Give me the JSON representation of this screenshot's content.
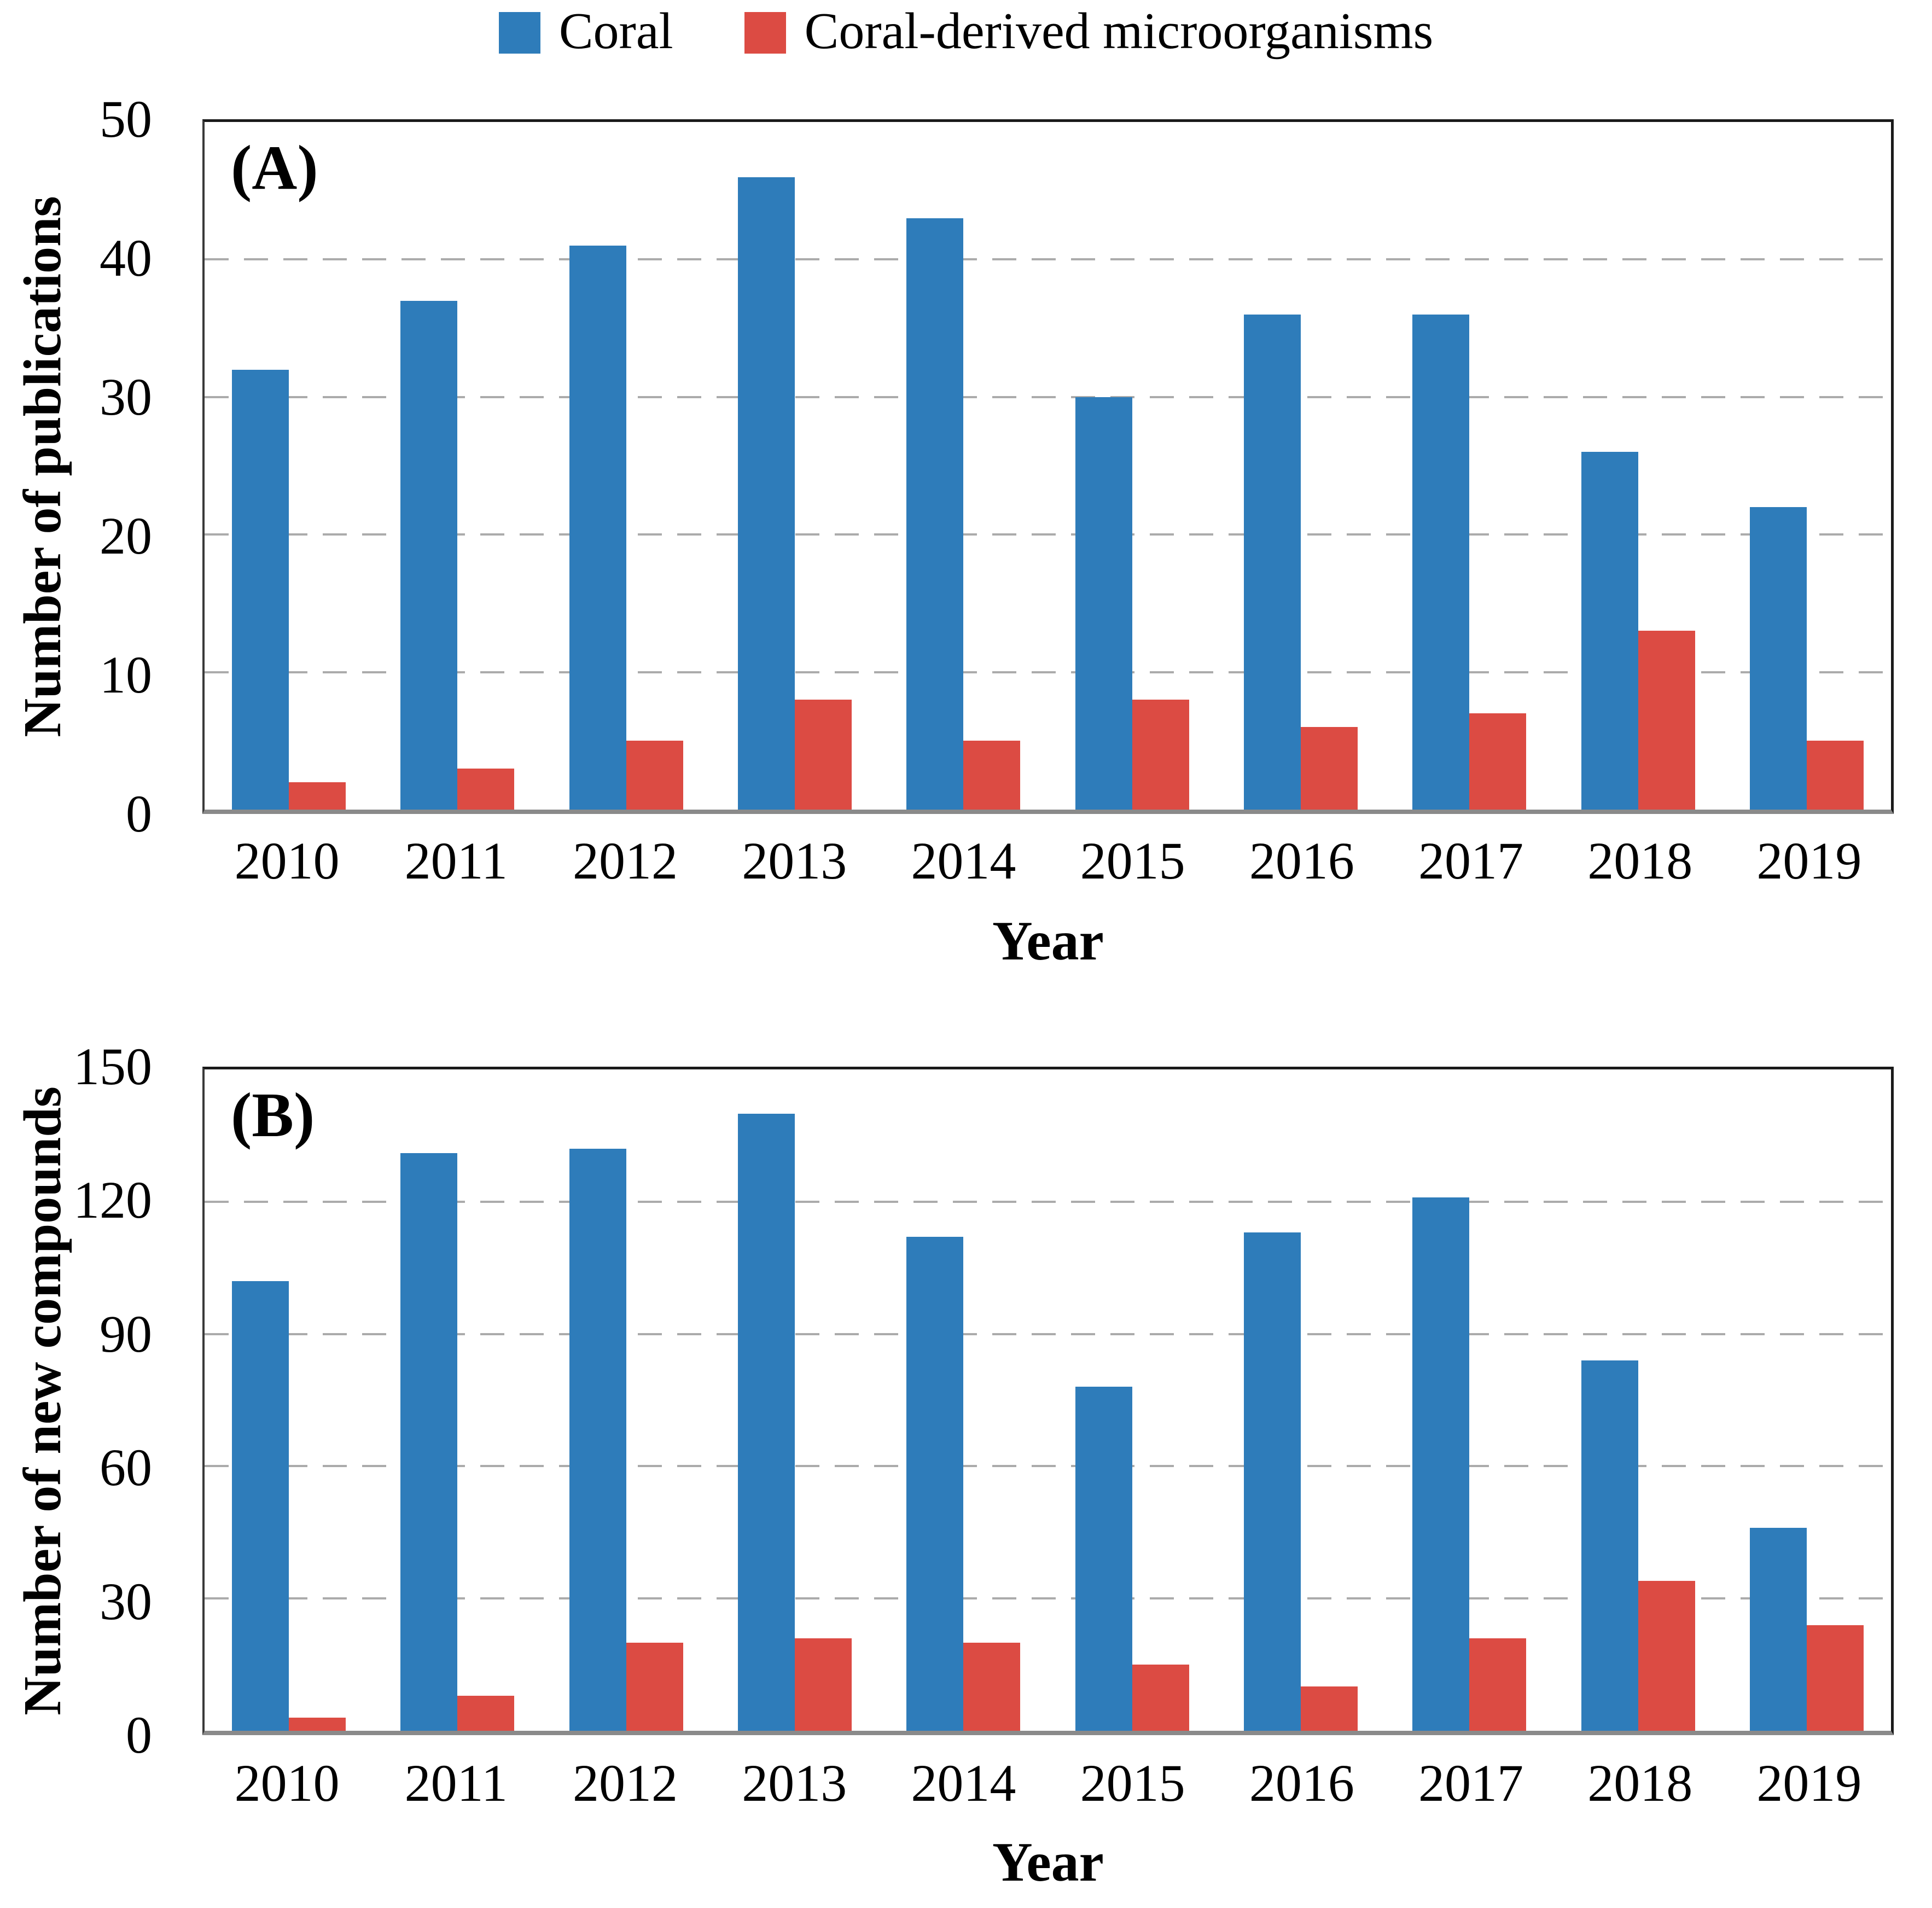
{
  "legend": {
    "items": [
      {
        "label": "Coral",
        "color": "#2E7CBA"
      },
      {
        "label": "Coral-derived microorganisms",
        "color": "#DC4B43"
      }
    ]
  },
  "chart_data": [
    {
      "type": "bar",
      "panel_label": "(A)",
      "title": "",
      "xlabel": "Year",
      "ylabel": "Number of publications",
      "ylim": [
        0,
        50
      ],
      "yticks": [
        0,
        10,
        20,
        30,
        40,
        50
      ],
      "grid": "dashed horizontal",
      "legend_position": "top-center",
      "categories": [
        "2010",
        "2011",
        "2012",
        "2013",
        "2014",
        "2015",
        "2016",
        "2017",
        "2018",
        "2019"
      ],
      "series": [
        {
          "name": "Coral",
          "color": "#2E7CBA",
          "values": [
            32,
            37,
            41,
            46,
            43,
            30,
            36,
            36,
            26,
            22
          ]
        },
        {
          "name": "Coral-derived microorganisms",
          "color": "#DC4B43",
          "values": [
            2,
            3,
            5,
            8,
            5,
            8,
            6,
            7,
            13,
            5
          ]
        }
      ]
    },
    {
      "type": "bar",
      "panel_label": "(B)",
      "title": "",
      "xlabel": "Year",
      "ylabel": "Number of new compounds",
      "ylim": [
        0,
        150
      ],
      "yticks": [
        0,
        30,
        60,
        90,
        120,
        150
      ],
      "grid": "dashed horizontal",
      "legend_position": "top-center",
      "categories": [
        "2010",
        "2011",
        "2012",
        "2013",
        "2014",
        "2015",
        "2016",
        "2017",
        "2018",
        "2019"
      ],
      "series": [
        {
          "name": "Coral",
          "color": "#2E7CBA",
          "values": [
            102,
            131,
            132,
            140,
            112,
            78,
            113,
            121,
            84,
            46
          ]
        },
        {
          "name": "Coral-derived microorganisms",
          "color": "#DC4B43",
          "values": [
            3,
            8,
            20,
            21,
            20,
            15,
            10,
            21,
            34,
            24
          ]
        }
      ]
    }
  ]
}
